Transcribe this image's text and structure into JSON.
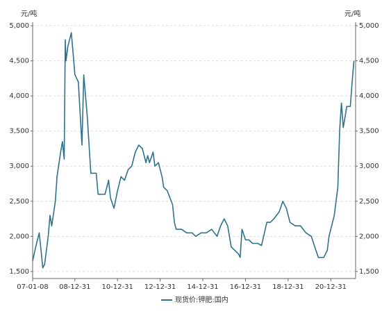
{
  "chart_data": {
    "type": "line",
    "y_unit": "元/吨",
    "y2_unit": "元/吨",
    "x": [
      "2007-01-08",
      "2007-03-01",
      "2007-05-01",
      "2007-06-01",
      "2007-07-01",
      "2007-08-01",
      "2007-10-01",
      "2007-11-01",
      "2007-12-01",
      "2008-02-01",
      "2008-03-01",
      "2008-05-01",
      "2008-06-01",
      "2008-07-01",
      "2008-07-20",
      "2008-08-01",
      "2008-09-01",
      "2008-10-01",
      "2008-11-01",
      "2009-01-01",
      "2009-03-01",
      "2009-05-01",
      "2009-06-01",
      "2009-08-01",
      "2009-10-01",
      "2010-01-01",
      "2010-02-01",
      "2010-06-01",
      "2010-08-01",
      "2010-09-01",
      "2010-11-01",
      "2011-01-01",
      "2011-03-01",
      "2011-05-01",
      "2011-07-01",
      "2011-09-01",
      "2011-11-01",
      "2012-01-01",
      "2012-03-01",
      "2012-05-01",
      "2012-06-01",
      "2012-07-01",
      "2012-09-01",
      "2012-10-01",
      "2012-12-01",
      "2013-02-01",
      "2013-03-01",
      "2013-05-01",
      "2013-08-01",
      "2013-09-01",
      "2013-10-01",
      "2014-01-01",
      "2014-04-01",
      "2014-07-01",
      "2014-09-01",
      "2014-12-01",
      "2015-03-01",
      "2015-06-01",
      "2015-09-01",
      "2015-11-01",
      "2016-01-01",
      "2016-03-01",
      "2016-05-01",
      "2016-07-01",
      "2016-09-01",
      "2016-10-01",
      "2016-11-01",
      "2017-01-01",
      "2017-03-01",
      "2017-05-01",
      "2017-08-01",
      "2017-10-01",
      "2018-01-01",
      "2018-03-01",
      "2018-05-01",
      "2018-08-01",
      "2018-10-01",
      "2018-12-01",
      "2019-02-01",
      "2019-05-01",
      "2019-08-01",
      "2019-11-01",
      "2020-02-01",
      "2020-04-01",
      "2020-06-01",
      "2020-09-01",
      "2020-11-01",
      "2020-12-01",
      "2021-03-01",
      "2021-05-01",
      "2021-06-01",
      "2021-07-01",
      "2021-08-01",
      "2021-09-01",
      "2021-10-01",
      "2021-12-01",
      "2022-01-01",
      "2022-02-01"
    ],
    "series": [
      {
        "name": "现货价:钾肥:国内",
        "color": "#2e7289",
        "values": [
          1650,
          1850,
          2050,
          1800,
          1550,
          1600,
          2000,
          2300,
          2150,
          2500,
          2850,
          3200,
          3350,
          3100,
          4800,
          4500,
          4700,
          4800,
          4900,
          4300,
          4200,
          3300,
          4300,
          3700,
          2900,
          2900,
          2600,
          2600,
          2800,
          2550,
          2400,
          2650,
          2850,
          2800,
          2950,
          3000,
          3200,
          3300,
          3250,
          3050,
          3150,
          3050,
          3200,
          3000,
          3050,
          2850,
          2700,
          2650,
          2450,
          2200,
          2100,
          2100,
          2050,
          2050,
          2000,
          2050,
          2050,
          2100,
          2000,
          2150,
          2250,
          2150,
          1850,
          1800,
          1750,
          1700,
          2100,
          1950,
          1950,
          1900,
          1900,
          1870,
          2200,
          2200,
          2250,
          2350,
          2500,
          2400,
          2200,
          2150,
          2150,
          2050,
          2000,
          1850,
          1700,
          1700,
          1800,
          2000,
          2300,
          2700,
          3500,
          3900,
          3550,
          3700,
          3850,
          3850,
          4200,
          4500
        ]
      }
    ],
    "xlim": [
      "2007-01-08",
      "2022-03-01"
    ],
    "xticks": [
      {
        "value": "2007-01-08",
        "label": "07-01-08"
      },
      {
        "value": "2008-12-31",
        "label": "08-12-31"
      },
      {
        "value": "2010-12-31",
        "label": "10-12-31"
      },
      {
        "value": "2012-12-31",
        "label": "12-12-31"
      },
      {
        "value": "2014-12-31",
        "label": "14-12-31"
      },
      {
        "value": "2016-12-31",
        "label": "16-12-31"
      },
      {
        "value": "2018-12-31",
        "label": "18-12-31"
      },
      {
        "value": "2020-12-31",
        "label": "20-12-31"
      }
    ],
    "ylim": [
      1400,
      5050
    ],
    "yticks": [
      {
        "value": 1500,
        "label": "1,500"
      },
      {
        "value": 2000,
        "label": "2,000"
      },
      {
        "value": 2500,
        "label": "2,500"
      },
      {
        "value": 3000,
        "label": "3,000"
      },
      {
        "value": 3500,
        "label": "3,500"
      },
      {
        "value": 4000,
        "label": "4,000"
      },
      {
        "value": 4500,
        "label": "4,500"
      },
      {
        "value": 5000,
        "label": "5,000"
      }
    ],
    "y2lim": [
      1400,
      5050
    ],
    "y2ticks": [
      {
        "value": 1500,
        "label": "1,500"
      },
      {
        "value": 2000,
        "label": "2,000"
      },
      {
        "value": 2500,
        "label": "2,500"
      },
      {
        "value": 3000,
        "label": "3,000"
      },
      {
        "value": 3500,
        "label": "3,500"
      },
      {
        "value": 4000,
        "label": "4,000"
      },
      {
        "value": 4500,
        "label": "4,500"
      },
      {
        "value": 5000,
        "label": "5,000"
      }
    ],
    "grid": true
  }
}
